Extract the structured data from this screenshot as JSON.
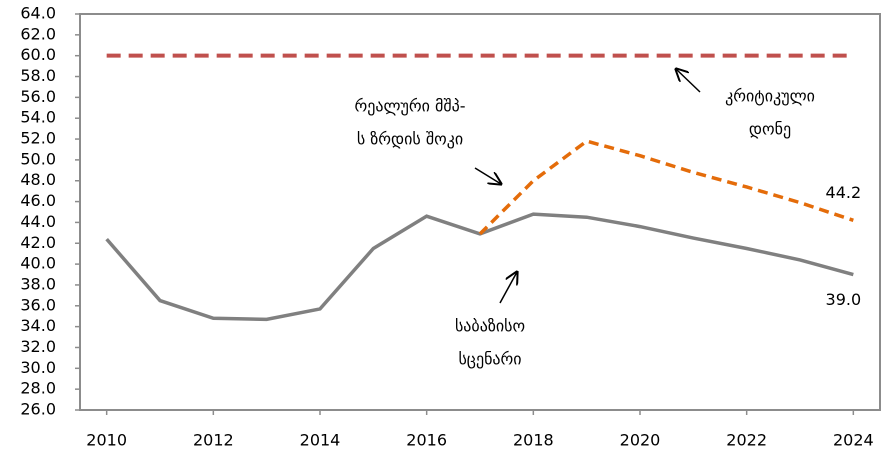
{
  "chart_data": {
    "type": "line",
    "x": [
      2010,
      2011,
      2012,
      2013,
      2014,
      2015,
      2016,
      2017,
      2018,
      2019,
      2020,
      2021,
      2022,
      2023,
      2024
    ],
    "xlim": [
      2009.5,
      2024.5
    ],
    "xticks": [
      2010,
      2012,
      2014,
      2016,
      2018,
      2020,
      2022,
      2024
    ],
    "ylim": [
      26,
      64
    ],
    "yticks": [
      {
        "value": 26,
        "label": "26.0"
      },
      {
        "value": 28,
        "label": "28.0"
      },
      {
        "value": 30,
        "label": "30.0"
      },
      {
        "value": 32,
        "label": "32.0"
      },
      {
        "value": 34,
        "label": "34.0"
      },
      {
        "value": 36,
        "label": "36.0"
      },
      {
        "value": 38,
        "label": "38.0"
      },
      {
        "value": 40,
        "label": "40.0"
      },
      {
        "value": 42,
        "label": "42.0"
      },
      {
        "value": 44,
        "label": "44.0"
      },
      {
        "value": 46,
        "label": "46.0"
      },
      {
        "value": 48,
        "label": "48.0"
      },
      {
        "value": 50,
        "label": "50.0"
      },
      {
        "value": 52,
        "label": "52.0"
      },
      {
        "value": 54,
        "label": "54.0"
      },
      {
        "value": 56,
        "label": "56.0"
      },
      {
        "value": 58,
        "label": "58.0"
      },
      {
        "value": 60,
        "label": "60.0"
      },
      {
        "value": 62,
        "label": "62.0"
      },
      {
        "value": 64,
        "label": "64.0"
      }
    ],
    "grid": false,
    "series": [
      {
        "color": "#808080",
        "dash": false,
        "values": [
          42.4,
          36.5,
          34.8,
          34.7,
          35.7,
          41.5,
          44.6,
          42.9,
          44.8,
          44.5,
          43.6,
          42.5,
          41.5,
          40.4,
          39.0
        ],
        "value_labels": [
          null,
          null,
          null,
          null,
          null,
          null,
          null,
          null,
          null,
          null,
          null,
          null,
          null,
          null,
          "39.0"
        ]
      },
      {
        "color": "#e46c0a",
        "dash": true,
        "values": [
          null,
          null,
          null,
          null,
          null,
          null,
          null,
          42.9,
          48.0,
          51.8,
          50.4,
          48.8,
          47.4,
          45.9,
          44.2
        ],
        "value_labels": [
          null,
          null,
          null,
          null,
          null,
          null,
          null,
          null,
          null,
          null,
          null,
          null,
          null,
          null,
          "44.2"
        ]
      },
      {
        "color": "#c0504d",
        "dash": true,
        "values": [
          60,
          60,
          60,
          60,
          60,
          60,
          60,
          60,
          60,
          60,
          60,
          60,
          60,
          60,
          60
        ]
      }
    ],
    "annotations": [
      {
        "lines": [
          "რეალური მშპ-",
          "ს ზრდის შოკი"
        ]
      },
      {
        "lines": [
          "კრიტიკული",
          "დონე"
        ]
      },
      {
        "lines": [
          "საბაზისო",
          "სცენარი"
        ]
      }
    ]
  }
}
